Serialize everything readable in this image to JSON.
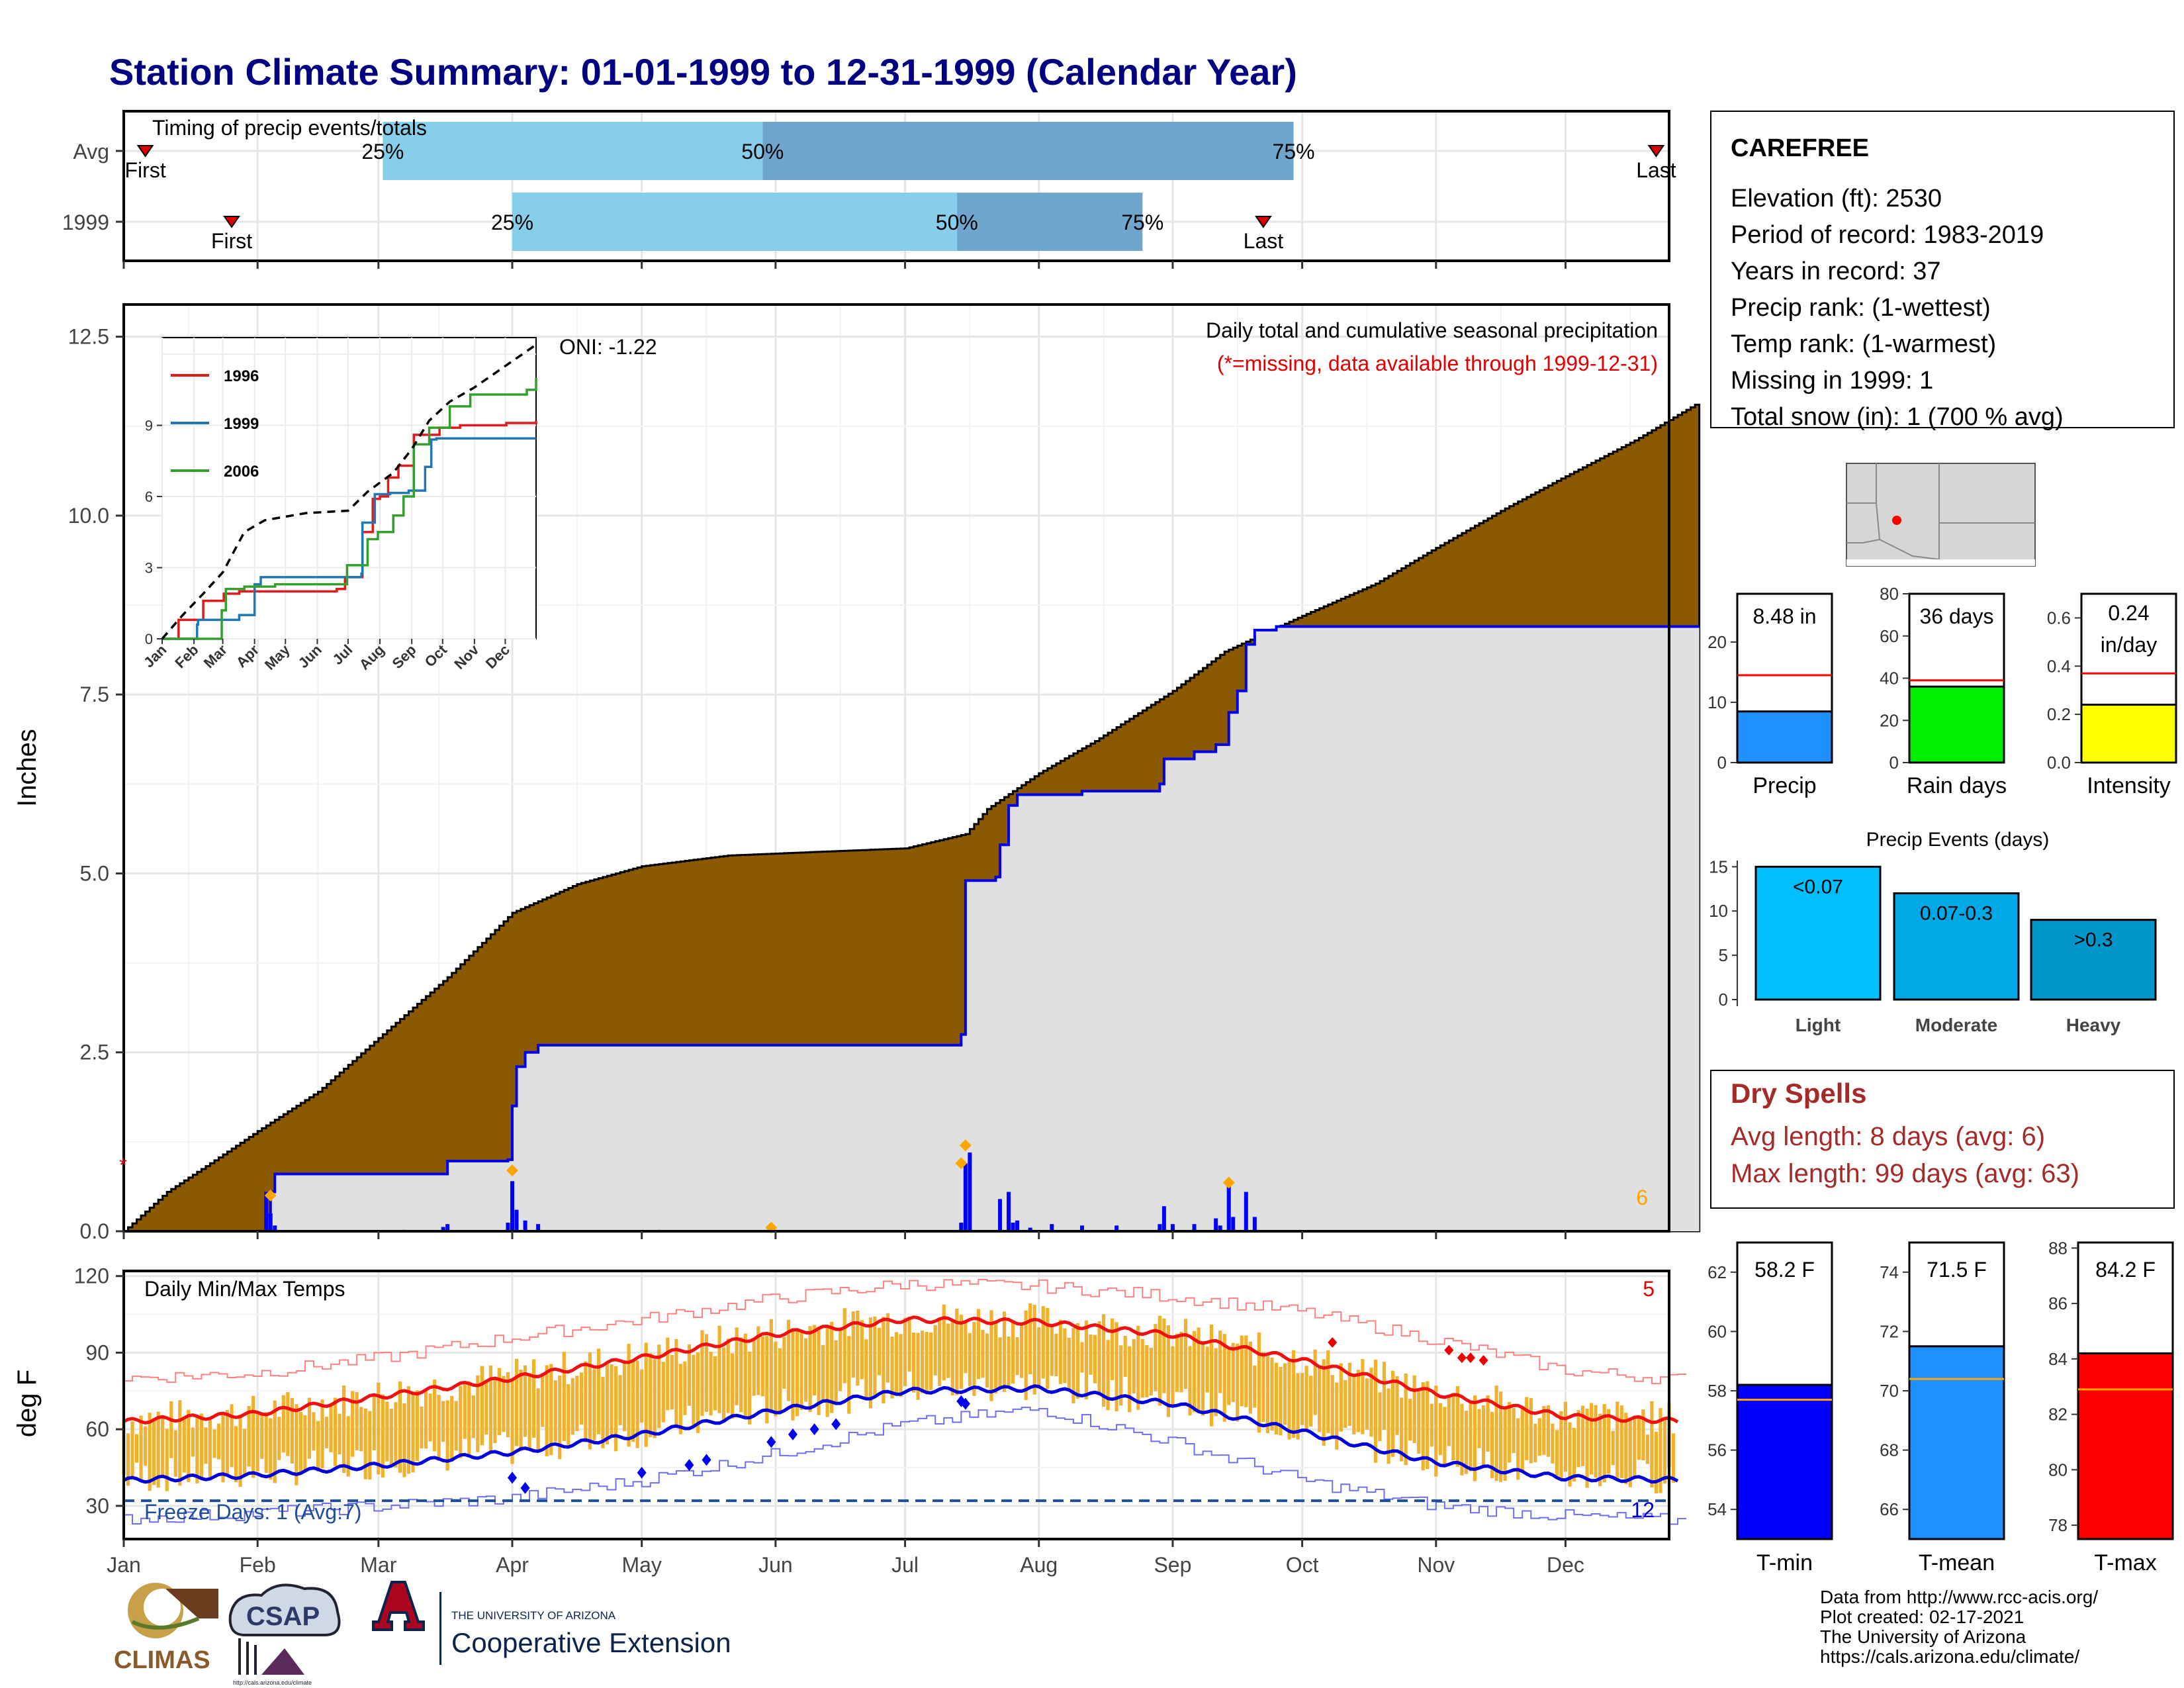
{
  "title": "Station Climate Summary: 01-01-1999 to 12-31-1999 (Calendar Year)",
  "months": [
    "Jan",
    "Feb",
    "Mar",
    "Apr",
    "May",
    "Jun",
    "Jul",
    "Aug",
    "Sep",
    "Oct",
    "Nov",
    "Dec"
  ],
  "timing": {
    "title": "Timing of precip events/totals",
    "rows": [
      {
        "label": "Avg",
        "first_doy": 5,
        "q25_doy": 60,
        "q50_doy": 148,
        "q75_doy": 271,
        "last_doy": 355,
        "first_label": "First",
        "last_label": "Last"
      },
      {
        "label": "1999",
        "first_doy": 25,
        "q25_doy": 90,
        "q50_doy": 193,
        "q75_doy": 236,
        "last_doy": 264,
        "first_label": "First",
        "last_label": "Last"
      }
    ],
    "pct_labels": [
      "25%",
      "50%",
      "75%"
    ]
  },
  "precip": {
    "ylabel": "Inches",
    "yticks": [
      "0.0",
      "2.5",
      "5.0",
      "7.5",
      "10.0",
      "12.5"
    ],
    "subtitle": "Daily total and cumulative seasonal precipitation",
    "note": "(*=missing, data available through 1999-12-31)",
    "oni": "ONI: -1.22",
    "missing_count": "6",
    "missing_marker": "*",
    "avg_cumulative": [
      [
        0,
        0
      ],
      [
        10,
        0.55
      ],
      [
        20,
        0.95
      ],
      [
        31,
        1.4
      ],
      [
        45,
        1.95
      ],
      [
        59,
        2.7
      ],
      [
        75,
        3.55
      ],
      [
        90,
        4.45
      ],
      [
        105,
        4.85
      ],
      [
        120,
        5.1
      ],
      [
        140,
        5.25
      ],
      [
        160,
        5.3
      ],
      [
        181,
        5.35
      ],
      [
        195,
        5.55
      ],
      [
        200,
        5.9
      ],
      [
        212,
        6.4
      ],
      [
        225,
        6.85
      ],
      [
        243,
        7.55
      ],
      [
        255,
        8.1
      ],
      [
        273,
        8.6
      ],
      [
        290,
        9.05
      ],
      [
        304,
        9.55
      ],
      [
        320,
        10.1
      ],
      [
        334,
        10.55
      ],
      [
        350,
        11.05
      ],
      [
        364,
        11.55
      ]
    ],
    "obs_cumulative": [
      [
        0,
        0
      ],
      [
        33,
        0
      ],
      [
        34,
        0.55
      ],
      [
        35,
        0.8
      ],
      [
        74,
        0.8
      ],
      [
        75,
        0.98
      ],
      [
        89,
        1.0
      ],
      [
        90,
        1.75
      ],
      [
        91,
        2.3
      ],
      [
        93,
        2.5
      ],
      [
        96,
        2.6
      ],
      [
        194,
        2.75
      ],
      [
        195,
        4.9
      ],
      [
        202,
        4.95
      ],
      [
        203,
        5.4
      ],
      [
        205,
        5.95
      ],
      [
        207,
        6.1
      ],
      [
        220,
        6.1
      ],
      [
        222,
        6.15
      ],
      [
        240,
        6.25
      ],
      [
        241,
        6.6
      ],
      [
        248,
        6.7
      ],
      [
        253,
        6.8
      ],
      [
        256,
        7.25
      ],
      [
        258,
        7.55
      ],
      [
        260,
        8.2
      ],
      [
        262,
        8.4
      ],
      [
        267,
        8.45
      ],
      [
        364,
        8.45
      ]
    ],
    "daily": [
      [
        33,
        0.55
      ],
      [
        34,
        0.25
      ],
      [
        35,
        0.08
      ],
      [
        65,
        0.02
      ],
      [
        74,
        0.06
      ],
      [
        75,
        0.1
      ],
      [
        89,
        0.12
      ],
      [
        90,
        0.7
      ],
      [
        91,
        0.3
      ],
      [
        93,
        0.15
      ],
      [
        96,
        0.1
      ],
      [
        124,
        0.02
      ],
      [
        150,
        0.02
      ],
      [
        194,
        0.12
      ],
      [
        195,
        0.95
      ],
      [
        196,
        1.1
      ],
      [
        203,
        0.45
      ],
      [
        205,
        0.55
      ],
      [
        206,
        0.12
      ],
      [
        207,
        0.15
      ],
      [
        210,
        0.05
      ],
      [
        215,
        0.1
      ],
      [
        222,
        0.08
      ],
      [
        230,
        0.08
      ],
      [
        240,
        0.1
      ],
      [
        241,
        0.35
      ],
      [
        243,
        0.1
      ],
      [
        248,
        0.1
      ],
      [
        253,
        0.18
      ],
      [
        254,
        0.08
      ],
      [
        256,
        0.65
      ],
      [
        257,
        0.2
      ],
      [
        260,
        0.55
      ],
      [
        262,
        0.2
      ]
    ],
    "oranges": [
      [
        34,
        0.5
      ],
      [
        90,
        0.85
      ],
      [
        150,
        0.05
      ],
      [
        194,
        0.95
      ],
      [
        195,
        1.2
      ],
      [
        256,
        0.68
      ]
    ]
  },
  "inset": {
    "yticks": [
      "0",
      "3",
      "6",
      "9"
    ],
    "months": [
      "Jan",
      "Feb",
      "Mar",
      "Apr",
      "May",
      "Jun",
      "Jul",
      "Aug",
      "Sep",
      "Oct",
      "Nov",
      "Dec"
    ],
    "legend": [
      "1996",
      "1999",
      "2006"
    ],
    "colors": [
      "#e31a1c",
      "#1f78b4",
      "#33a02c"
    ],
    "series": [
      [
        [
          0,
          0
        ],
        [
          15,
          0
        ],
        [
          16,
          0.8
        ],
        [
          30,
          0.8
        ],
        [
          40,
          1.6
        ],
        [
          60,
          1.9
        ],
        [
          75,
          2.0
        ],
        [
          90,
          2.0
        ],
        [
          140,
          2.0
        ],
        [
          170,
          2.1
        ],
        [
          178,
          2.6
        ],
        [
          195,
          4.5
        ],
        [
          205,
          5.9
        ],
        [
          212,
          6.0
        ],
        [
          220,
          6.8
        ],
        [
          230,
          7.3
        ],
        [
          245,
          8.6
        ],
        [
          270,
          8.9
        ],
        [
          290,
          9.0
        ],
        [
          310,
          9.0
        ],
        [
          335,
          9.1
        ],
        [
          364,
          9.2
        ]
      ],
      [
        [
          0,
          0
        ],
        [
          33,
          0
        ],
        [
          34,
          0.6
        ],
        [
          35,
          0.8
        ],
        [
          74,
          0.8
        ],
        [
          75,
          1.0
        ],
        [
          90,
          2.3
        ],
        [
          96,
          2.6
        ],
        [
          194,
          2.75
        ],
        [
          195,
          4.9
        ],
        [
          207,
          6.1
        ],
        [
          222,
          6.15
        ],
        [
          240,
          6.25
        ],
        [
          256,
          7.25
        ],
        [
          262,
          8.4
        ],
        [
          267,
          8.45
        ],
        [
          364,
          8.45
        ]
      ],
      [
        [
          0,
          0
        ],
        [
          55,
          0
        ],
        [
          58,
          1.2
        ],
        [
          62,
          2.1
        ],
        [
          80,
          2.2
        ],
        [
          110,
          2.3
        ],
        [
          175,
          2.3
        ],
        [
          180,
          3.1
        ],
        [
          200,
          4.2
        ],
        [
          210,
          4.5
        ],
        [
          225,
          5.2
        ],
        [
          235,
          6.0
        ],
        [
          245,
          8.2
        ],
        [
          260,
          8.9
        ],
        [
          280,
          9.8
        ],
        [
          300,
          10.3
        ],
        [
          330,
          10.3
        ],
        [
          355,
          10.5
        ],
        [
          364,
          11.0
        ]
      ]
    ],
    "avg": [
      [
        0,
        0
      ],
      [
        20,
        1.0
      ],
      [
        40,
        1.9
      ],
      [
        59,
        2.8
      ],
      [
        80,
        4.5
      ],
      [
        100,
        5.0
      ],
      [
        140,
        5.3
      ],
      [
        181,
        5.4
      ],
      [
        200,
        6.2
      ],
      [
        225,
        7.0
      ],
      [
        243,
        8.0
      ],
      [
        260,
        9.2
      ],
      [
        280,
        10.0
      ],
      [
        304,
        10.6
      ],
      [
        334,
        11.5
      ],
      [
        364,
        12.4
      ]
    ]
  },
  "temp": {
    "ylabel": "deg F",
    "yticks": [
      "30",
      "60",
      "90",
      "120"
    ],
    "label": "Daily Min/Max Temps",
    "freeze_label": "Freeze Days: 1 (Avg:7)",
    "missing_max": "5",
    "missing_min": "12",
    "freeze_line": 32,
    "avg_max": [
      [
        0,
        63
      ],
      [
        30,
        66
      ],
      [
        60,
        73
      ],
      [
        90,
        80
      ],
      [
        120,
        88
      ],
      [
        150,
        97
      ],
      [
        181,
        103
      ],
      [
        212,
        102
      ],
      [
        243,
        97
      ],
      [
        273,
        87
      ],
      [
        304,
        74
      ],
      [
        334,
        65
      ],
      [
        364,
        63
      ]
    ],
    "avg_min": [
      [
        0,
        40
      ],
      [
        30,
        42
      ],
      [
        60,
        46
      ],
      [
        90,
        51
      ],
      [
        120,
        58
      ],
      [
        150,
        67
      ],
      [
        181,
        75
      ],
      [
        212,
        76
      ],
      [
        243,
        70
      ],
      [
        273,
        59
      ],
      [
        304,
        47
      ],
      [
        334,
        41
      ],
      [
        364,
        40
      ]
    ],
    "rec_max": [
      [
        0,
        80
      ],
      [
        30,
        82
      ],
      [
        60,
        88
      ],
      [
        90,
        96
      ],
      [
        120,
        103
      ],
      [
        150,
        111
      ],
      [
        181,
        117
      ],
      [
        212,
        116
      ],
      [
        243,
        112
      ],
      [
        273,
        106
      ],
      [
        304,
        95
      ],
      [
        334,
        83
      ],
      [
        364,
        79
      ]
    ],
    "rec_min": [
      [
        0,
        25
      ],
      [
        30,
        27
      ],
      [
        60,
        30
      ],
      [
        90,
        33
      ],
      [
        120,
        40
      ],
      [
        150,
        50
      ],
      [
        181,
        62
      ],
      [
        212,
        68
      ],
      [
        243,
        55
      ],
      [
        273,
        40
      ],
      [
        304,
        30
      ],
      [
        334,
        26
      ],
      [
        364,
        24
      ]
    ],
    "blue_diamonds": [
      [
        90,
        41
      ],
      [
        93,
        37
      ],
      [
        120,
        43
      ],
      [
        131,
        46
      ],
      [
        135,
        48
      ],
      [
        150,
        55
      ],
      [
        155,
        58
      ],
      [
        160,
        60
      ],
      [
        165,
        62
      ],
      [
        194,
        71
      ],
      [
        195,
        70
      ]
    ],
    "red_diamonds": [
      [
        280,
        94
      ],
      [
        307,
        91
      ],
      [
        310,
        88
      ],
      [
        312,
        88
      ],
      [
        315,
        87
      ]
    ]
  },
  "station": {
    "name": "CAREFREE",
    "lines": [
      "Elevation (ft): 2530",
      "Period of record: 1983-2019",
      "Years in record: 37",
      "Precip rank:  (1-wettest)",
      "Temp rank:  (1-warmest)",
      "Missing in 1999: 1",
      "Total snow (in): 1 (700 % avg)"
    ]
  },
  "summary_bars": [
    {
      "label": "Precip",
      "value": 8.48,
      "text": "8.48 in",
      "avg": 14.5,
      "ylim": [
        0,
        28
      ],
      "ticks": [
        "0",
        "10",
        "20"
      ],
      "tickvals": [
        0,
        10,
        20
      ],
      "color": "#1e90ff"
    },
    {
      "label": "Rain days",
      "value": 36,
      "text": "36 days",
      "avg": 39,
      "ylim": [
        0,
        80
      ],
      "ticks": [
        "0",
        "20",
        "40",
        "60",
        "80"
      ],
      "tickvals": [
        0,
        20,
        40,
        60,
        80
      ],
      "color": "#00ee00"
    },
    {
      "label": "Intensity",
      "value": 0.24,
      "text1": "0.24",
      "text2": "in/day",
      "avg": 0.37,
      "ylim": [
        0,
        0.7
      ],
      "ticks": [
        "0.0",
        "0.2",
        "0.4",
        "0.6"
      ],
      "tickvals": [
        0,
        0.2,
        0.4,
        0.6
      ],
      "color": "#ffff00"
    }
  ],
  "events": {
    "title": "Precip Events (days)",
    "ticks": [
      "0",
      "5",
      "10",
      "15"
    ],
    "bars": [
      {
        "label": "Light",
        "value": 15,
        "text": "<0.07",
        "color": "#00bfff"
      },
      {
        "label": "Moderate",
        "value": 12,
        "text": "0.07-0.3",
        "color": "#00a9e6"
      },
      {
        "label": "Heavy",
        "value": 9,
        "text": ">0.3",
        "color": "#0096c8"
      }
    ]
  },
  "dry_spells": {
    "title": "Dry Spells",
    "avg_line": "Avg length: 8 days (avg: 6)",
    "max_line": "Max length: 99 days (avg: 63)"
  },
  "temp_bars": [
    {
      "label": "T-min",
      "value": 58.2,
      "text": "58.2 F",
      "avg": 57.7,
      "ylim": [
        53,
        63
      ],
      "ticks": [
        "54",
        "56",
        "58",
        "60",
        "62"
      ],
      "tickvals": [
        54,
        56,
        58,
        60,
        62
      ],
      "color": "#0000ff"
    },
    {
      "label": "T-mean",
      "value": 71.5,
      "text": "71.5 F",
      "avg": 70.4,
      "ylim": [
        65,
        75
      ],
      "ticks": [
        "66",
        "68",
        "70",
        "72",
        "74"
      ],
      "tickvals": [
        66,
        68,
        70,
        72,
        74
      ],
      "color": "#1e90ff"
    },
    {
      "label": "T-max",
      "value": 84.2,
      "text": "84.2 F",
      "avg": 82.9,
      "ylim": [
        77.5,
        88.2
      ],
      "ticks": [
        "78",
        "80",
        "82",
        "84",
        "86",
        "88"
      ],
      "tickvals": [
        78,
        80,
        82,
        84,
        86,
        88
      ],
      "color": "#ff0000"
    }
  ],
  "credits": [
    "Data from http://www.rcc-acis.org/",
    "Plot created: 02-17-2021",
    "The University of Arizona",
    "https://cals.arizona.edu/climate/"
  ],
  "logos": {
    "climas": "CLIMAS",
    "csap": "CSAP",
    "csap_url": "http://cals.arizona.edu/climate",
    "ua_small": "THE UNIVERSITY OF ARIZONA",
    "ua_big": "Cooperative Extension"
  }
}
